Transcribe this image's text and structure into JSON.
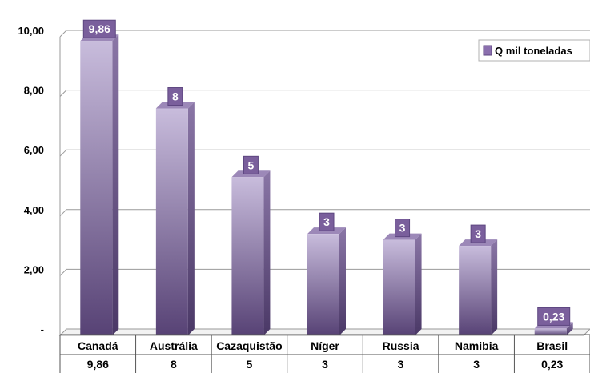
{
  "chart_data": {
    "type": "bar",
    "title": "",
    "xlabel": "",
    "ylabel": "",
    "categories": [
      "Canadá",
      "Austrália",
      "Cazaquistão",
      "Níger",
      "Russia",
      "Namibia",
      "Brasil"
    ],
    "series": [
      {
        "name": "Q  mil toneladas",
        "values": [
          9.86,
          7.6,
          5.3,
          3.4,
          3.2,
          3.0,
          0.23
        ],
        "data_labels": [
          "9,86",
          "8",
          "5",
          "3",
          "3",
          "3",
          "0,23"
        ],
        "table_values": [
          "9,86",
          "8",
          "5",
          "3",
          "3",
          "3",
          "0,23"
        ]
      }
    ],
    "ylim": [
      0,
      10
    ],
    "y_ticks": [
      0,
      2,
      4,
      6,
      8,
      10
    ],
    "y_tick_labels": [
      "-",
      "2,00",
      "4,00",
      "6,00",
      "8,00",
      "10,00"
    ],
    "grid": true,
    "legend_position": "top-right",
    "bar_style": "3d-column",
    "has_data_table": true,
    "colors": {
      "bar_front_top": "#c8bcdc",
      "bar_front_bottom": "#574275",
      "bar_side": "#6e5a8a",
      "bar_top": "#9c88b8",
      "label_bg": "#7a5f9c",
      "legend_swatch": "#8b6fae",
      "gridline": "#9a9a9a",
      "axis_text": "#000000"
    }
  }
}
